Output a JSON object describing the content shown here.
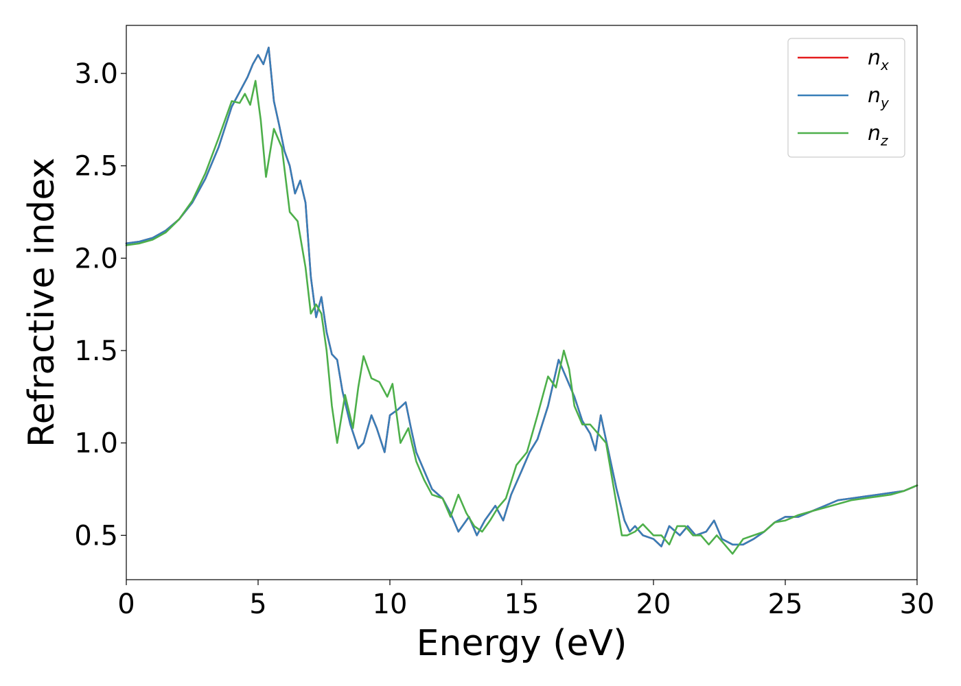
{
  "chart_data": {
    "type": "line",
    "xlabel": "Energy (eV)",
    "ylabel": "Refractive index",
    "xlim": [
      0,
      30
    ],
    "ylim": [
      0.26,
      3.26
    ],
    "xticks": [
      "0",
      "5",
      "10",
      "15",
      "20",
      "25",
      "30"
    ],
    "yticks": [
      "0.5",
      "1.0",
      "1.5",
      "2.0",
      "2.5",
      "3.0"
    ],
    "legend_position": "top-right",
    "grid": false,
    "series": [
      {
        "name": "n_x",
        "base": "n",
        "sub": "x",
        "color": "#e41a1c",
        "x": [
          0,
          0.5,
          1,
          1.5,
          2,
          2.5,
          3,
          3.5,
          4,
          4.3,
          4.6,
          4.8,
          5,
          5.2,
          5.4,
          5.6,
          5.8,
          6,
          6.2,
          6.4,
          6.6,
          6.8,
          7,
          7.2,
          7.4,
          7.6,
          7.8,
          8,
          8.2,
          8.5,
          8.8,
          9,
          9.3,
          9.5,
          9.8,
          10,
          10.3,
          10.6,
          10.8,
          11,
          11.3,
          11.6,
          12,
          12.3,
          12.6,
          13,
          13.3,
          13.6,
          14,
          14.3,
          14.6,
          15,
          15.3,
          15.6,
          16,
          16.4,
          16.7,
          17,
          17.3,
          17.6,
          17.8,
          18,
          18.3,
          18.6,
          18.9,
          19.1,
          19.3,
          19.6,
          20,
          20.3,
          20.6,
          21,
          21.3,
          21.6,
          22,
          22.3,
          22.6,
          23,
          23.4,
          23.8,
          24.2,
          24.6,
          25,
          25.5,
          26,
          26.5,
          27,
          27.5,
          28,
          28.5,
          29,
          29.5,
          30
        ],
        "values": [
          2.08,
          2.09,
          2.11,
          2.15,
          2.21,
          2.3,
          2.43,
          2.6,
          2.82,
          2.9,
          2.98,
          3.05,
          3.1,
          3.05,
          3.14,
          2.85,
          2.72,
          2.58,
          2.5,
          2.35,
          2.42,
          2.3,
          1.9,
          1.68,
          1.79,
          1.6,
          1.48,
          1.45,
          1.28,
          1.1,
          0.97,
          1.0,
          1.15,
          1.08,
          0.95,
          1.15,
          1.18,
          1.22,
          1.08,
          0.95,
          0.85,
          0.75,
          0.7,
          0.62,
          0.52,
          0.6,
          0.5,
          0.58,
          0.66,
          0.58,
          0.72,
          0.85,
          0.95,
          1.02,
          1.2,
          1.45,
          1.35,
          1.25,
          1.12,
          1.05,
          0.96,
          1.15,
          0.95,
          0.75,
          0.58,
          0.52,
          0.55,
          0.5,
          0.48,
          0.44,
          0.55,
          0.5,
          0.55,
          0.5,
          0.52,
          0.58,
          0.48,
          0.45,
          0.45,
          0.48,
          0.52,
          0.57,
          0.6,
          0.6,
          0.63,
          0.66,
          0.69,
          0.7,
          0.71,
          0.72,
          0.73,
          0.74,
          0.77
        ]
      },
      {
        "name": "n_y",
        "base": "n",
        "sub": "y",
        "color": "#377eb8",
        "x": [
          0,
          0.5,
          1,
          1.5,
          2,
          2.5,
          3,
          3.5,
          4,
          4.3,
          4.6,
          4.8,
          5,
          5.2,
          5.4,
          5.6,
          5.8,
          6,
          6.2,
          6.4,
          6.6,
          6.8,
          7,
          7.2,
          7.4,
          7.6,
          7.8,
          8,
          8.2,
          8.5,
          8.8,
          9,
          9.3,
          9.5,
          9.8,
          10,
          10.3,
          10.6,
          10.8,
          11,
          11.3,
          11.6,
          12,
          12.3,
          12.6,
          13,
          13.3,
          13.6,
          14,
          14.3,
          14.6,
          15,
          15.3,
          15.6,
          16,
          16.4,
          16.7,
          17,
          17.3,
          17.6,
          17.8,
          18,
          18.3,
          18.6,
          18.9,
          19.1,
          19.3,
          19.6,
          20,
          20.3,
          20.6,
          21,
          21.3,
          21.6,
          22,
          22.3,
          22.6,
          23,
          23.4,
          23.8,
          24.2,
          24.6,
          25,
          25.5,
          26,
          26.5,
          27,
          27.5,
          28,
          28.5,
          29,
          29.5,
          30
        ],
        "values": [
          2.08,
          2.09,
          2.11,
          2.15,
          2.21,
          2.3,
          2.43,
          2.6,
          2.82,
          2.9,
          2.98,
          3.05,
          3.1,
          3.05,
          3.14,
          2.85,
          2.72,
          2.58,
          2.5,
          2.35,
          2.42,
          2.3,
          1.9,
          1.68,
          1.79,
          1.6,
          1.48,
          1.45,
          1.28,
          1.1,
          0.97,
          1.0,
          1.15,
          1.08,
          0.95,
          1.15,
          1.18,
          1.22,
          1.08,
          0.95,
          0.85,
          0.75,
          0.7,
          0.62,
          0.52,
          0.6,
          0.5,
          0.58,
          0.66,
          0.58,
          0.72,
          0.85,
          0.95,
          1.02,
          1.2,
          1.45,
          1.35,
          1.25,
          1.12,
          1.05,
          0.96,
          1.15,
          0.95,
          0.75,
          0.58,
          0.52,
          0.55,
          0.5,
          0.48,
          0.44,
          0.55,
          0.5,
          0.55,
          0.5,
          0.52,
          0.58,
          0.48,
          0.45,
          0.45,
          0.48,
          0.52,
          0.57,
          0.6,
          0.6,
          0.63,
          0.66,
          0.69,
          0.7,
          0.71,
          0.72,
          0.73,
          0.74,
          0.77
        ]
      },
      {
        "name": "n_z",
        "base": "n",
        "sub": "z",
        "color": "#4daf4a",
        "x": [
          0,
          0.5,
          1,
          1.5,
          2,
          2.5,
          3,
          3.5,
          4,
          4.3,
          4.5,
          4.7,
          4.9,
          5.1,
          5.3,
          5.6,
          5.9,
          6.2,
          6.5,
          6.8,
          7.0,
          7.2,
          7.4,
          7.6,
          7.8,
          8.0,
          8.3,
          8.6,
          8.8,
          9.0,
          9.3,
          9.6,
          9.9,
          10.1,
          10.4,
          10.7,
          11.0,
          11.3,
          11.6,
          12.0,
          12.3,
          12.6,
          12.9,
          13.2,
          13.5,
          13.8,
          14.1,
          14.4,
          14.8,
          15.2,
          15.6,
          16.0,
          16.3,
          16.6,
          16.8,
          17.0,
          17.3,
          17.6,
          17.9,
          18.2,
          18.5,
          18.8,
          19.0,
          19.3,
          19.6,
          20.0,
          20.3,
          20.6,
          20.9,
          21.2,
          21.5,
          21.8,
          22.1,
          22.4,
          22.7,
          23.0,
          23.4,
          23.8,
          24.2,
          24.6,
          25.0,
          25.5,
          26.0,
          26.5,
          27.0,
          27.5,
          28.0,
          28.5,
          29.0,
          29.5,
          30.0
        ],
        "values": [
          2.07,
          2.08,
          2.1,
          2.14,
          2.21,
          2.31,
          2.46,
          2.65,
          2.85,
          2.84,
          2.89,
          2.83,
          2.96,
          2.75,
          2.44,
          2.7,
          2.6,
          2.25,
          2.2,
          1.95,
          1.7,
          1.75,
          1.7,
          1.5,
          1.2,
          1.0,
          1.26,
          1.08,
          1.3,
          1.47,
          1.35,
          1.33,
          1.25,
          1.32,
          1.0,
          1.08,
          0.9,
          0.8,
          0.72,
          0.7,
          0.6,
          0.72,
          0.62,
          0.55,
          0.52,
          0.58,
          0.65,
          0.7,
          0.88,
          0.95,
          1.15,
          1.36,
          1.3,
          1.5,
          1.4,
          1.2,
          1.1,
          1.1,
          1.05,
          1.0,
          0.75,
          0.5,
          0.5,
          0.52,
          0.56,
          0.5,
          0.5,
          0.45,
          0.55,
          0.55,
          0.5,
          0.5,
          0.45,
          0.5,
          0.45,
          0.4,
          0.48,
          0.5,
          0.52,
          0.57,
          0.58,
          0.61,
          0.63,
          0.65,
          0.67,
          0.69,
          0.7,
          0.71,
          0.72,
          0.74,
          0.77
        ]
      }
    ]
  }
}
